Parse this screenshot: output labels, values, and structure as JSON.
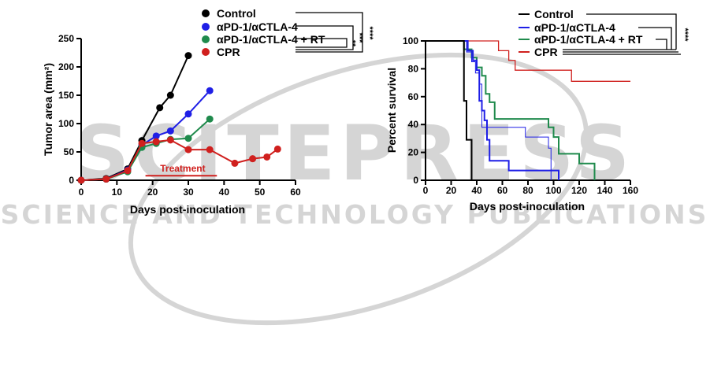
{
  "watermark": {
    "word": "SCITEPRESS",
    "subtitle": "SCIENCE AND TECHNOLOGY PUBLICATIONS"
  },
  "chart_data": [
    {
      "type": "line",
      "title": "",
      "xlabel": "Days post-inoculation",
      "ylabel": "Tumor area (mm²)",
      "xlim": [
        0,
        60
      ],
      "ylim": [
        0,
        250
      ],
      "xticks": [
        0,
        10,
        20,
        30,
        40,
        50,
        60
      ],
      "yticks": [
        0,
        50,
        100,
        150,
        200,
        250
      ],
      "xtick_labels": [
        "0",
        "10",
        "20",
        "30",
        "40",
        "50",
        "60"
      ],
      "ytick_labels": [
        "0",
        "50",
        "100",
        "150",
        "200",
        "250"
      ],
      "legend_position": "top-right",
      "series": [
        {
          "name": "Control",
          "color": "#000000",
          "x": [
            0,
            7,
            13,
            17,
            22,
            25,
            30
          ],
          "y": [
            0,
            3,
            20,
            70,
            128,
            150,
            220
          ]
        },
        {
          "name": "αPD-1/αCTLA-4",
          "color": "#1f1fe6",
          "x": [
            0,
            7,
            13,
            17,
            21,
            25,
            30,
            36
          ],
          "y": [
            0,
            2,
            18,
            62,
            78,
            87,
            117,
            158
          ]
        },
        {
          "name": "αPD-1/αCTLA-4 + RT",
          "color": "#1f8a4c",
          "x": [
            0,
            7,
            13,
            17,
            21,
            25,
            30,
            36
          ],
          "y": [
            0,
            2,
            15,
            58,
            65,
            72,
            74,
            108
          ]
        },
        {
          "name": "CPR",
          "color": "#d0201e",
          "x": [
            0,
            7,
            13,
            17,
            21,
            25,
            30,
            36,
            43,
            48,
            52,
            55
          ],
          "y": [
            0,
            2,
            17,
            65,
            68,
            71,
            54,
            54,
            30,
            38,
            41,
            55
          ]
        }
      ],
      "annotation": {
        "label": "Treatment",
        "color": "#d0201e",
        "x_start": 18,
        "x_end": 38,
        "y": 8
      },
      "significance": [
        {
          "label": "****",
          "from": "Control",
          "to": "CPR"
        },
        {
          "label": "***",
          "from": "αPD-1/αCTLA-4",
          "to": "CPR"
        },
        {
          "label": "**",
          "from": "αPD-1/αCTLA-4 + RT",
          "to": "CPR"
        }
      ]
    },
    {
      "type": "line",
      "subtype": "kaplan-meier",
      "title": "",
      "xlabel": "Days post-inoculation",
      "ylabel": "Percent survival",
      "xlim": [
        0,
        160
      ],
      "ylim": [
        0,
        100
      ],
      "xticks": [
        0,
        20,
        40,
        60,
        80,
        100,
        120,
        140,
        160
      ],
      "yticks": [
        0,
        20,
        40,
        60,
        80,
        100
      ],
      "xtick_labels": [
        "0",
        "20",
        "40",
        "60",
        "80",
        "100",
        "120",
        "140",
        "160"
      ],
      "ytick_labels": [
        "0",
        "20",
        "40",
        "60",
        "80",
        "100"
      ],
      "legend_position": "top-right",
      "series": [
        {
          "name": "Control",
          "color": "#000000",
          "steps": [
            [
              0,
              100
            ],
            [
              30,
              100
            ],
            [
              30,
              57
            ],
            [
              32,
              57
            ],
            [
              32,
              29
            ],
            [
              36,
              29
            ],
            [
              36,
              0
            ]
          ]
        },
        {
          "name": "αPD-1/αCTLA-4",
          "color": "#1f1fe6",
          "steps": [
            [
              0,
              100
            ],
            [
              33,
              100
            ],
            [
              33,
              93
            ],
            [
              37,
              93
            ],
            [
              37,
              86
            ],
            [
              40,
              86
            ],
            [
              40,
              79
            ],
            [
              42,
              79
            ],
            [
              42,
              57
            ],
            [
              44,
              57
            ],
            [
              44,
              50
            ],
            [
              46,
              50
            ],
            [
              46,
              43
            ],
            [
              48,
              43
            ],
            [
              48,
              29
            ],
            [
              50,
              29
            ],
            [
              50,
              14
            ],
            [
              65,
              14
            ],
            [
              65,
              7
            ],
            [
              104,
              7
            ],
            [
              104,
              0
            ]
          ],
          "thin_steps": [
            [
              0,
              100
            ],
            [
              32,
              100
            ],
            [
              32,
              92
            ],
            [
              36,
              92
            ],
            [
              36,
              85
            ],
            [
              39,
              85
            ],
            [
              39,
              77
            ],
            [
              42,
              77
            ],
            [
              42,
              69
            ],
            [
              44,
              69
            ],
            [
              44,
              38
            ],
            [
              78,
              38
            ],
            [
              78,
              31
            ],
            [
              96,
              31
            ],
            [
              96,
              23
            ],
            [
              98,
              23
            ],
            [
              98,
              0
            ]
          ]
        },
        {
          "name": "αPD-1/αCTLA-4 + RT",
          "color": "#1f8a4c",
          "steps": [
            [
              0,
              100
            ],
            [
              30,
              100
            ],
            [
              30,
              94
            ],
            [
              36,
              94
            ],
            [
              36,
              88
            ],
            [
              40,
              88
            ],
            [
              40,
              81
            ],
            [
              44,
              81
            ],
            [
              44,
              75
            ],
            [
              47,
              75
            ],
            [
              47,
              62
            ],
            [
              50,
              62
            ],
            [
              50,
              56
            ],
            [
              54,
              56
            ],
            [
              54,
              44
            ],
            [
              96,
              44
            ],
            [
              96,
              38
            ],
            [
              100,
              38
            ],
            [
              100,
              31
            ],
            [
              104,
              31
            ],
            [
              104,
              19
            ],
            [
              120,
              19
            ],
            [
              120,
              12
            ],
            [
              132,
              12
            ],
            [
              132,
              0
            ]
          ]
        },
        {
          "name": "CPR",
          "color": "#d0201e",
          "steps": [
            [
              0,
              100
            ],
            [
              57,
              100
            ],
            [
              57,
              93
            ],
            [
              65,
              93
            ],
            [
              65,
              86
            ],
            [
              70,
              86
            ],
            [
              70,
              79
            ],
            [
              114,
              79
            ],
            [
              114,
              71
            ],
            [
              160,
              71
            ]
          ]
        }
      ],
      "significance": [
        {
          "label": "****",
          "from": "Control",
          "to": "CPR"
        }
      ]
    }
  ]
}
